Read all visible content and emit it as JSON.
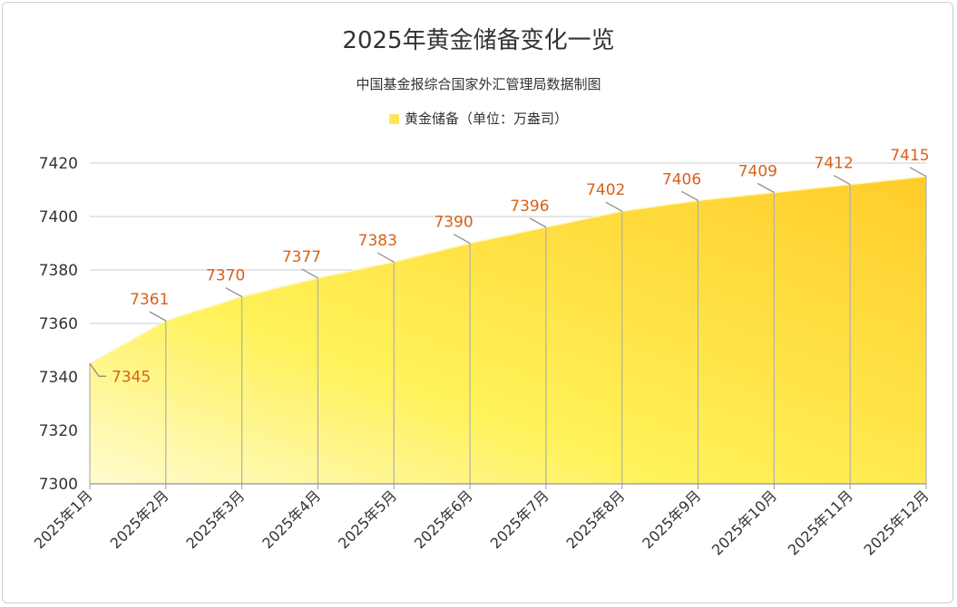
{
  "chart_data": {
    "type": "area",
    "title": "2025年黄金储备变化一览",
    "subtitle": "中国基金报综合国家外汇管理局数据制图",
    "legend": {
      "entries": [
        "黄金储备（单位：万盎司）"
      ],
      "placement": "top"
    },
    "categories": [
      "2025年1月",
      "2025年2月",
      "2025年3月",
      "2025年4月",
      "2025年5月",
      "2025年6月",
      "2025年7月",
      "2025年8月",
      "2025年9月",
      "2025年10月",
      "2025年11月",
      "2025年12月"
    ],
    "series": [
      {
        "name": "黄金储备（单位：万盎司）",
        "values": [
          7345,
          7361,
          7370,
          7377,
          7383,
          7390,
          7396,
          7402,
          7406,
          7409,
          7412,
          7415
        ]
      }
    ],
    "ylim": [
      7300,
      7420
    ],
    "yticks": [
      7300,
      7320,
      7340,
      7360,
      7380,
      7400,
      7420
    ],
    "grid": true,
    "colors": {
      "fill_light": "#fff7b0",
      "fill_mid": "#ffee40",
      "fill_dark": "#ffcc2a",
      "label": "#d9601a",
      "axis_text": "#333333",
      "grid": "#dddddd"
    }
  }
}
